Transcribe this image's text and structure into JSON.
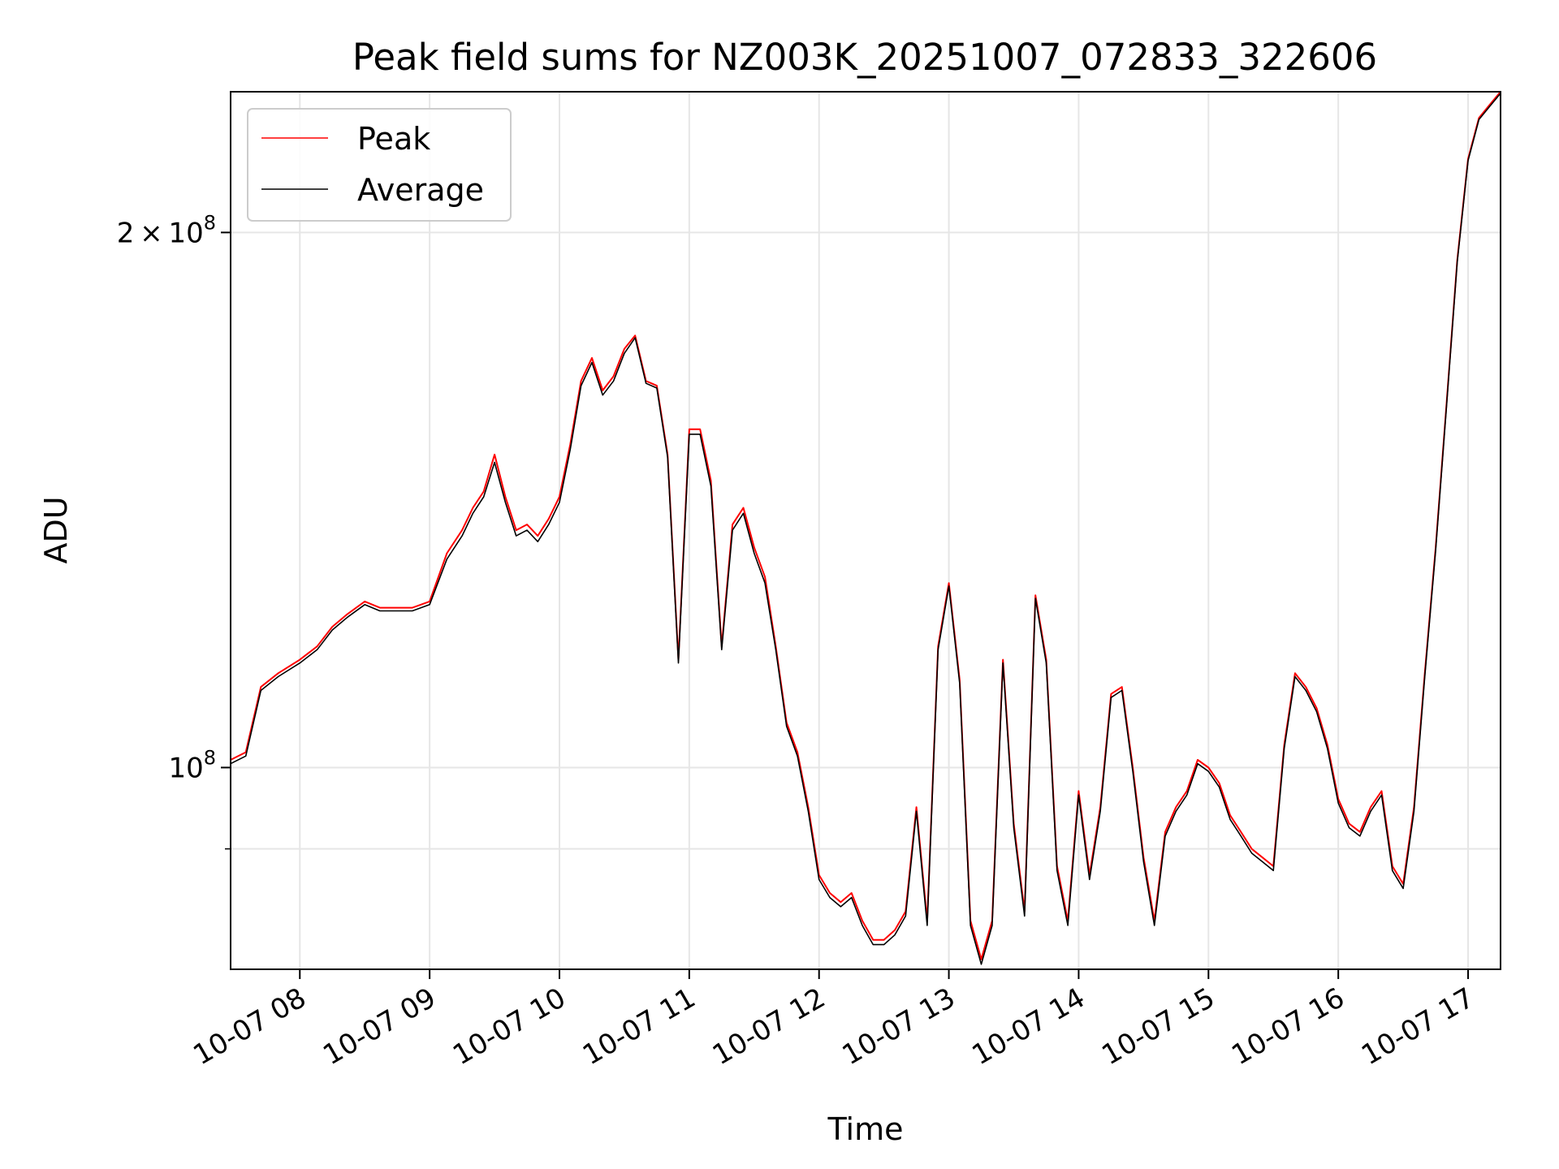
{
  "chart_data": {
    "type": "line",
    "title": "Peak field sums for NZ003K_20251007_072833_322606",
    "xlabel": "Time",
    "ylabel": "ADU",
    "y_scale": "log",
    "xlim": [
      "10-07 07:28",
      "10-07 17:15"
    ],
    "ylim": [
      77000000,
      240000000
    ],
    "grid": true,
    "legend": "upper-left",
    "x_tick_labels": [
      "10-07 08",
      "10-07 09",
      "10-07 10",
      "10-07 11",
      "10-07 12",
      "10-07 13",
      "10-07 14",
      "10-07 15",
      "10-07 16",
      "10-07 17"
    ],
    "y_tick_labels": [
      {
        "value": 200000000,
        "mantissa": "2",
        "times": "×",
        "base": "10",
        "exponent": "8"
      },
      {
        "value": 100000000,
        "mantissa": "",
        "times": "",
        "base": "10",
        "exponent": "8"
      }
    ],
    "x": [
      "07:28",
      "07:35",
      "07:42",
      "07:50",
      "08:00",
      "08:08",
      "08:15",
      "08:22",
      "08:30",
      "08:37",
      "08:45",
      "08:52",
      "09:00",
      "09:08",
      "09:15",
      "09:20",
      "09:25",
      "09:30",
      "09:35",
      "09:40",
      "09:45",
      "09:50",
      "09:55",
      "10:00",
      "10:05",
      "10:10",
      "10:15",
      "10:20",
      "10:25",
      "10:30",
      "10:35",
      "10:40",
      "10:45",
      "10:50",
      "10:55",
      "11:00",
      "11:05",
      "11:10",
      "11:15",
      "11:20",
      "11:25",
      "11:30",
      "11:35",
      "11:40",
      "11:45",
      "11:50",
      "11:55",
      "12:00",
      "12:05",
      "12:10",
      "12:15",
      "12:20",
      "12:25",
      "12:30",
      "12:35",
      "12:40",
      "12:45",
      "12:50",
      "12:55",
      "13:00",
      "13:05",
      "13:10",
      "13:15",
      "13:20",
      "13:25",
      "13:30",
      "13:35",
      "13:40",
      "13:45",
      "13:50",
      "13:55",
      "14:00",
      "14:05",
      "14:10",
      "14:15",
      "14:20",
      "14:25",
      "14:30",
      "14:35",
      "14:40",
      "14:45",
      "14:50",
      "14:55",
      "15:00",
      "15:05",
      "15:10",
      "15:15",
      "15:20",
      "15:25",
      "15:30",
      "15:35",
      "15:40",
      "15:45",
      "15:50",
      "15:55",
      "16:00",
      "16:05",
      "16:10",
      "16:15",
      "16:20",
      "16:25",
      "16:30",
      "16:35",
      "16:40",
      "16:45",
      "16:50",
      "16:55",
      "17:00",
      "17:05",
      "17:10",
      "17:15"
    ],
    "series": [
      {
        "name": "Peak",
        "color": "#ff0000",
        "values": [
          101000000,
          102000000,
          111000000,
          113000000,
          115000000,
          117000000,
          120000000,
          122000000,
          124000000,
          123000000,
          123000000,
          123000000,
          124000000,
          132000000,
          136000000,
          140000000,
          143000000,
          150000000,
          142000000,
          136000000,
          137000000,
          135000000,
          138000000,
          142000000,
          152000000,
          165000000,
          170000000,
          163000000,
          166000000,
          172000000,
          175000000,
          165000000,
          164000000,
          150000000,
          115000000,
          155000000,
          155000000,
          145000000,
          117000000,
          137000000,
          140000000,
          133000000,
          128000000,
          117000000,
          106000000,
          102000000,
          95000000,
          87000000,
          85000000,
          84000000,
          85000000,
          82000000,
          80000000,
          80000000,
          81000000,
          83000000,
          95000000,
          82000000,
          117000000,
          127000000,
          112000000,
          82000000,
          78000000,
          82000000,
          115000000,
          93000000,
          83000000,
          125000000,
          115000000,
          88000000,
          82000000,
          97000000,
          87000000,
          95000000,
          110000000,
          111000000,
          100000000,
          89000000,
          82000000,
          92000000,
          95000000,
          97000000,
          101000000,
          100000000,
          98000000,
          94000000,
          92000000,
          90000000,
          89000000,
          88000000,
          103000000,
          113000000,
          111000000,
          108000000,
          103000000,
          96000000,
          93000000,
          92000000,
          95000000,
          97000000,
          88000000,
          86000000,
          95000000,
          113000000,
          133000000,
          160000000,
          193000000,
          220000000,
          232000000,
          236000000,
          240000000
        ]
      },
      {
        "name": "Average",
        "color": "#000000",
        "values": [
          100500000,
          101500000,
          110500000,
          112500000,
          114500000,
          116500000,
          119500000,
          121500000,
          123500000,
          122500000,
          122500000,
          122500000,
          123500000,
          131000000,
          135000000,
          139000000,
          142000000,
          148500000,
          141000000,
          135000000,
          136000000,
          134000000,
          137000000,
          141000000,
          151000000,
          164000000,
          169000000,
          162000000,
          165000000,
          171000000,
          174500000,
          164500000,
          163500000,
          149500000,
          114500000,
          154000000,
          154000000,
          144000000,
          116500000,
          136000000,
          139000000,
          132000000,
          127000000,
          116500000,
          105500000,
          101500000,
          94500000,
          86500000,
          84500000,
          83500000,
          84500000,
          81500000,
          79500000,
          79500000,
          80500000,
          82500000,
          94500000,
          81500000,
          116500000,
          126500000,
          111500000,
          81500000,
          77500000,
          81500000,
          114500000,
          92500000,
          82500000,
          124500000,
          114500000,
          87500000,
          81500000,
          96500000,
          86500000,
          94500000,
          109500000,
          110500000,
          99500000,
          88500000,
          81500000,
          91500000,
          94500000,
          96500000,
          100500000,
          99500000,
          97500000,
          93500000,
          91500000,
          89500000,
          88500000,
          87500000,
          102500000,
          112500000,
          110500000,
          107500000,
          102500000,
          95500000,
          92500000,
          91500000,
          94500000,
          96500000,
          87500000,
          85500000,
          94500000,
          112500000,
          132500000,
          159500000,
          192500000,
          219500000,
          231500000,
          235500000,
          239500000
        ]
      }
    ]
  }
}
